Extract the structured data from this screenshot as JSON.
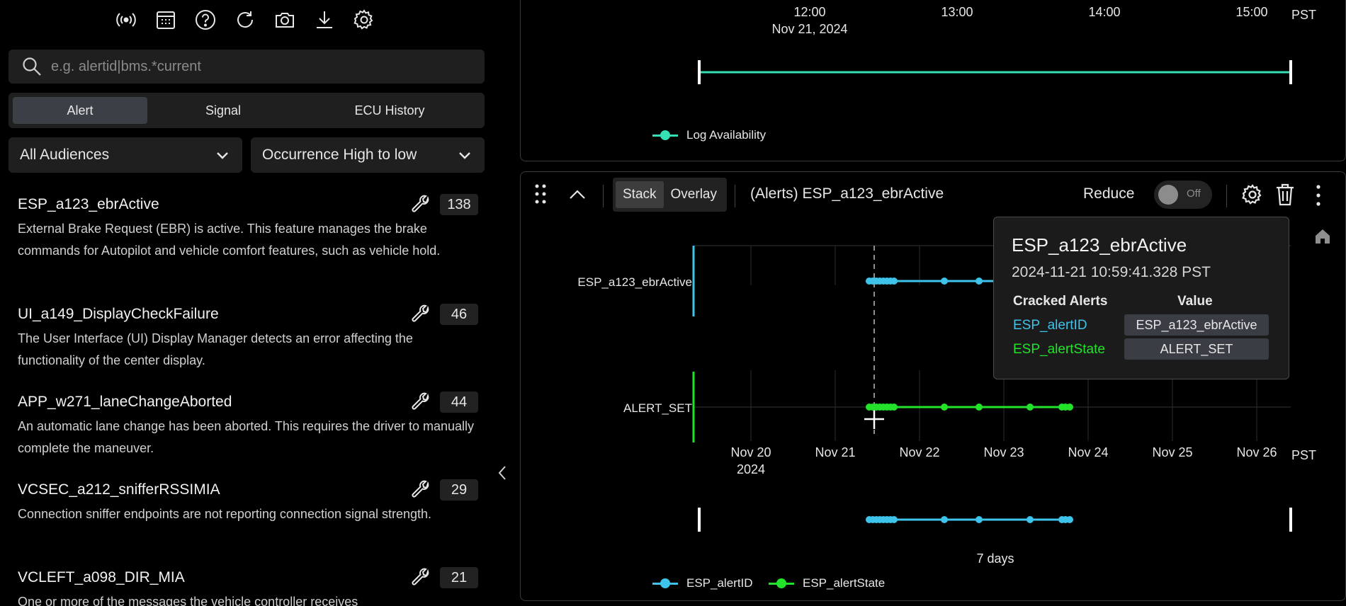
{
  "toolbar": {
    "icons": [
      "broadcast-icon",
      "calendar-icon",
      "help-icon",
      "refresh-icon",
      "camera-icon",
      "download-icon",
      "gear-icon"
    ]
  },
  "search": {
    "placeholder": "e.g. alertid|bms.*current",
    "value": ""
  },
  "tabs": [
    {
      "label": "Alert",
      "active": true
    },
    {
      "label": "Signal",
      "active": false
    },
    {
      "label": "ECU History",
      "active": false
    }
  ],
  "filters": {
    "audience": "All Audiences",
    "sort": "Occurrence High to low"
  },
  "alerts": [
    {
      "title": "ESP_a123_ebrActive",
      "count": "138",
      "desc": "External Brake Request (EBR) is active. This feature manages the brake commands for Autopilot and vehicle comfort features, such as vehicle hold."
    },
    {
      "title": "UI_a149_DisplayCheckFailure",
      "count": "46",
      "desc": "The User Interface (UI) Display Manager detects an error affecting the functionality of the center display."
    },
    {
      "title": "APP_w271_laneChangeAborted",
      "count": "44",
      "desc": "An automatic lane change has been aborted. This requires the driver to manually complete the maneuver."
    },
    {
      "title": "VCSEC_a212_snifferRSSIMIA",
      "count": "29",
      "desc": "Connection sniffer endpoints are not reporting connection signal strength."
    },
    {
      "title": "VCLEFT_a098_DIR_MIA",
      "count": "21",
      "desc": "One or more of the messages the vehicle controller receives"
    }
  ],
  "top_panel": {
    "times": [
      "12:00",
      "13:00",
      "14:00",
      "15:00"
    ],
    "date": "Nov 21, 2024",
    "tz": "PST",
    "legend": "Log Availability",
    "colors": {
      "availability": "#35e0b5"
    }
  },
  "bottom_panel": {
    "stack_label": "Stack",
    "overlay_label": "Overlay",
    "title": "(Alerts) ESP_a123_ebrActive",
    "reduce_label": "Reduce",
    "toggle_label": "Off",
    "row_labels": [
      "ESP_a123_ebrActive",
      "ALERT_SET"
    ],
    "date_ticks": [
      "Nov 20",
      "Nov 21",
      "Nov 22",
      "Nov 23",
      "Nov 24",
      "Nov 25",
      "Nov 26"
    ],
    "year": "2024",
    "tz": "PST",
    "span_label": "7 days",
    "legend": [
      {
        "name": "ESP_alertID",
        "color": "#3ec3ea"
      },
      {
        "name": "ESP_alertState",
        "color": "#22e22a"
      }
    ]
  },
  "tooltip": {
    "title": "ESP_a123_ebrActive",
    "time": "2024-11-21 10:59:41.328 PST",
    "col_key": "Cracked Alerts",
    "col_val": "Value",
    "rows": [
      {
        "key": "ESP_alertID",
        "value": "ESP_a123_ebrActive",
        "color": "#3ec3ea"
      },
      {
        "key": "ESP_alertState",
        "value": "ALERT_SET",
        "color": "#22e22a"
      }
    ]
  }
}
